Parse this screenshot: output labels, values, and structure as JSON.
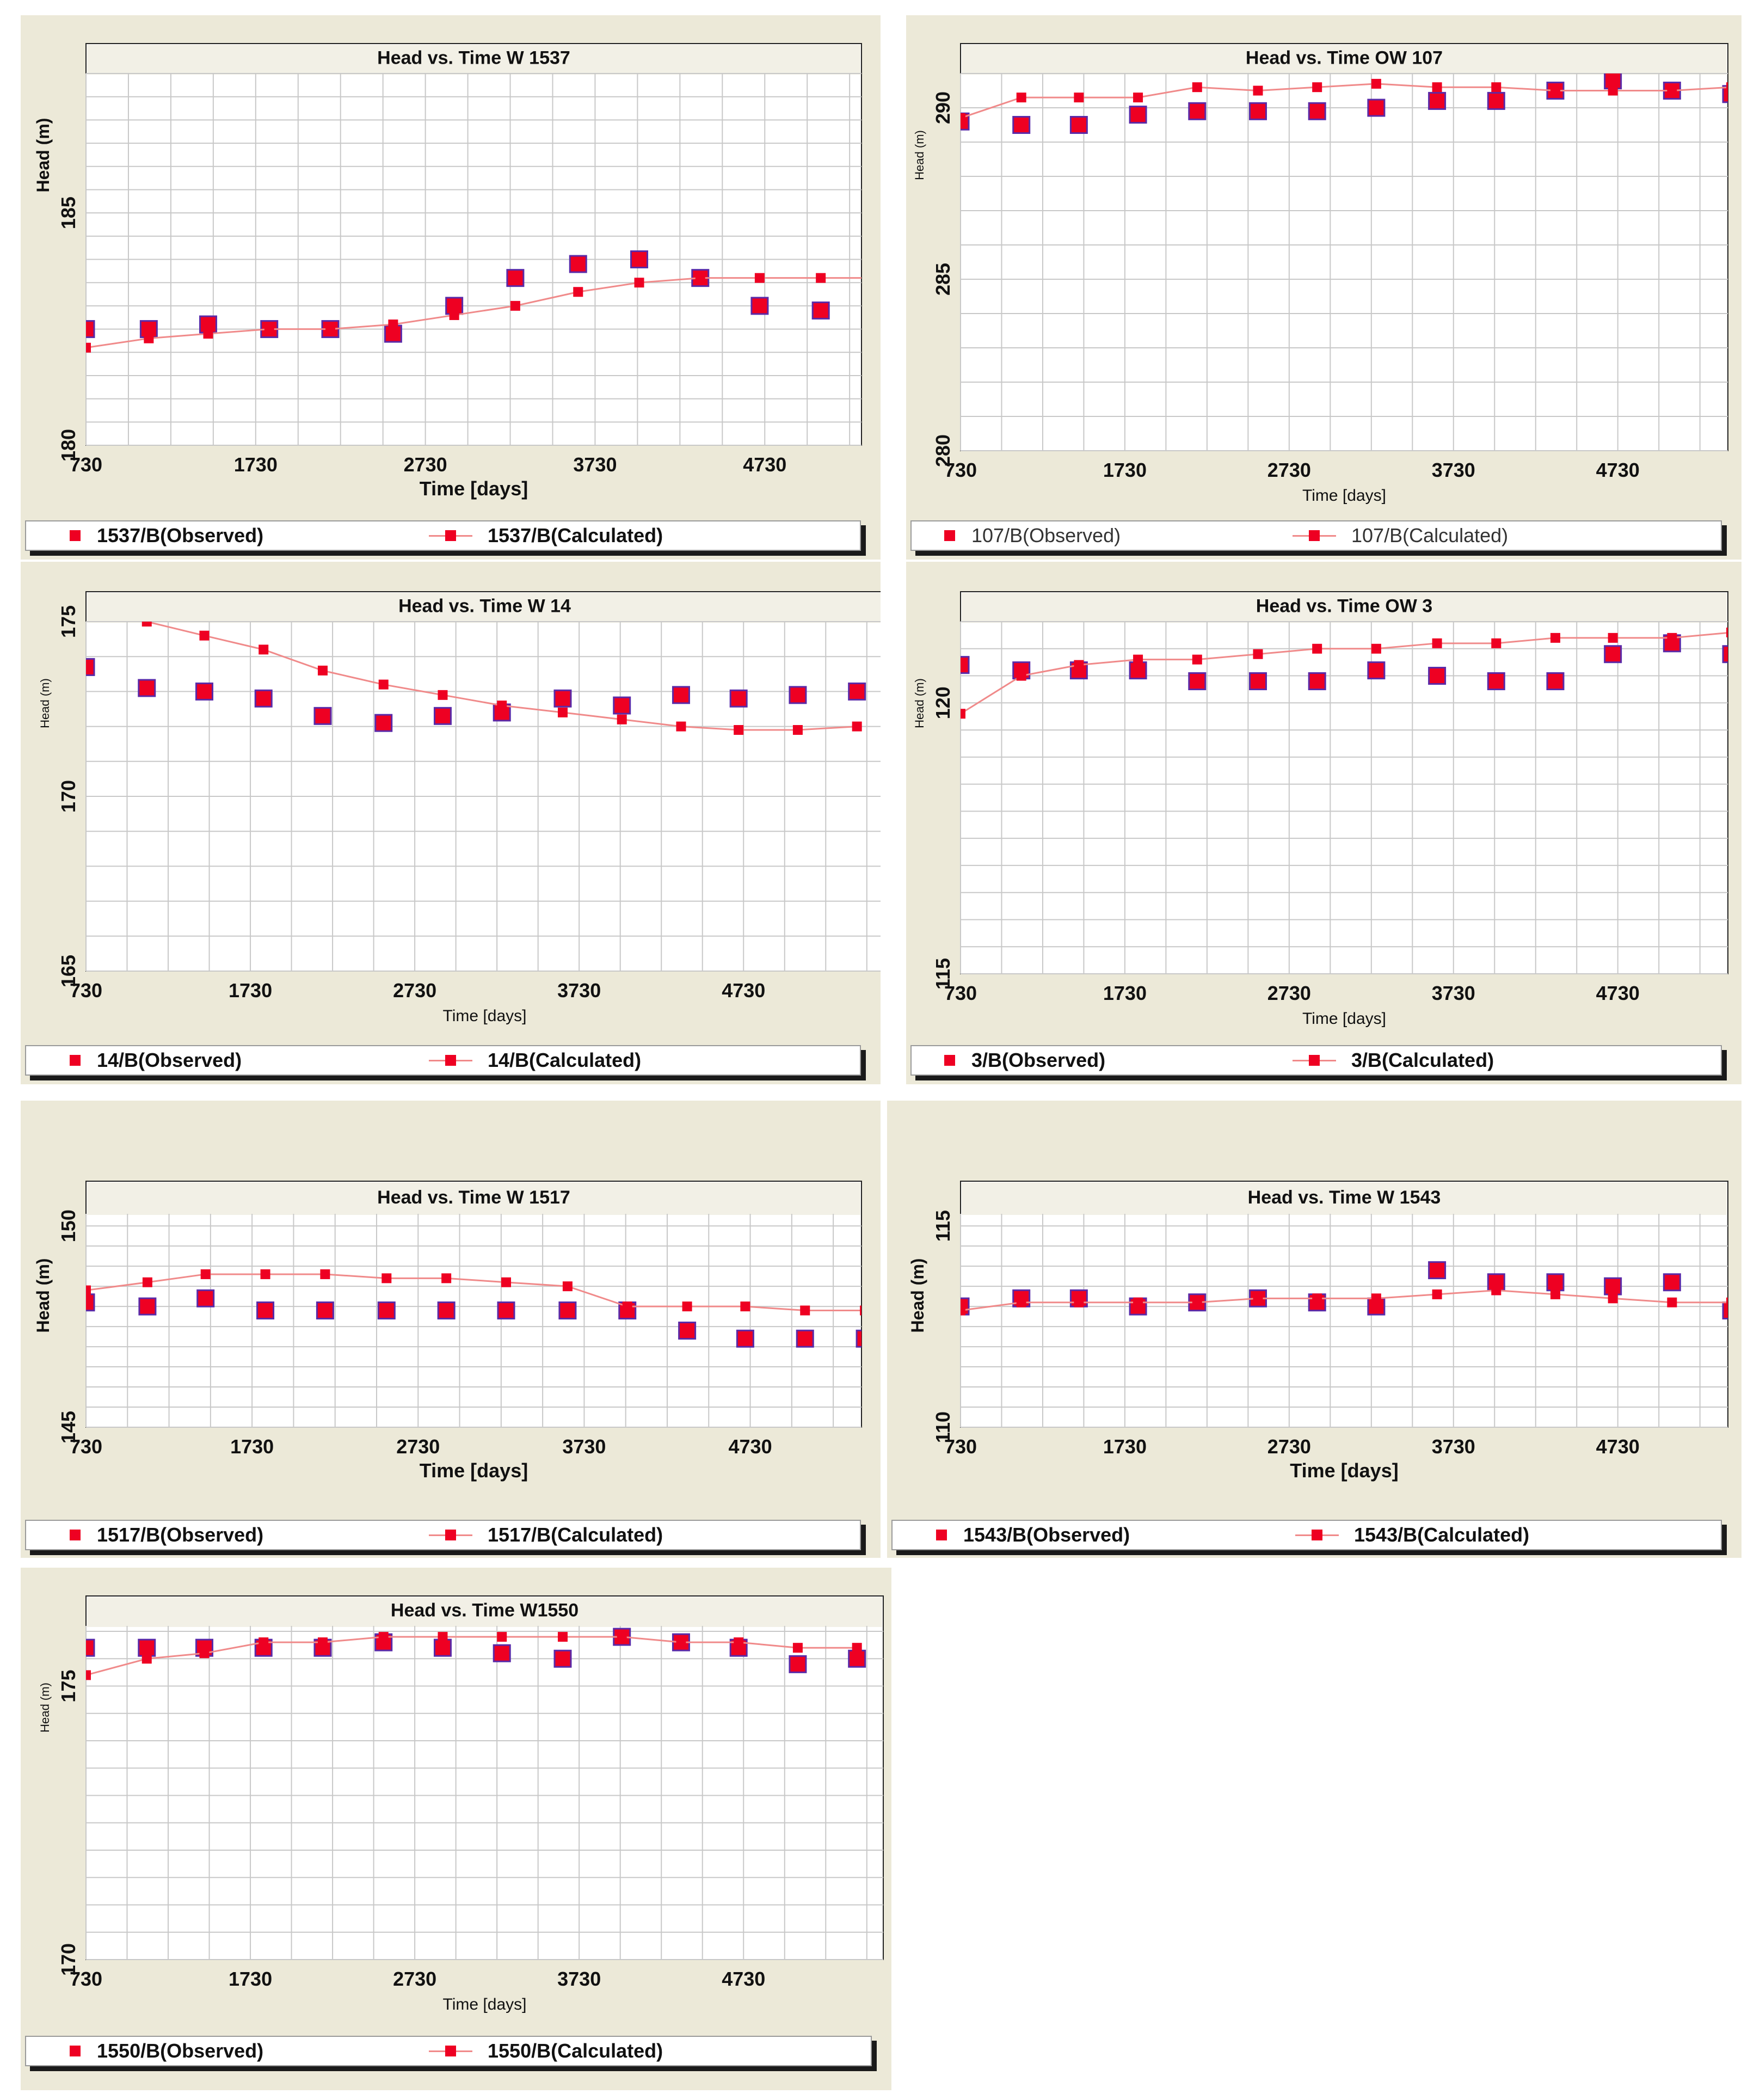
{
  "colors": {
    "marker": "#ee0022",
    "marker_edge": "#5a2aa8",
    "line": "#f08a8a",
    "grid": "#c8c8c8",
    "plot_bg": "#ffffff",
    "panel_bg": "#ece9d8"
  },
  "chart_data": [
    {
      "id": "w1537",
      "type": "scatter",
      "title": "Head vs. Time W 1537",
      "xlabel": "Time  [days]",
      "ylabel": "Head (m)",
      "xlim": [
        730,
        5300
      ],
      "ylim": [
        180,
        188
      ],
      "xticks": [
        "730",
        "1730",
        "2730",
        "3730",
        "4730"
      ],
      "yticks": [
        "180",
        "185"
      ],
      "ytick_values": [
        180,
        185
      ],
      "grid": true,
      "series": [
        {
          "name": "1537/B(Observed)",
          "kind": "markers",
          "x": [
            730,
            1100,
            1450,
            1810,
            2170,
            2540,
            2900,
            3260,
            3630,
            3990,
            4350,
            4700,
            5060,
            5420
          ],
          "y": [
            182.5,
            182.5,
            182.6,
            182.5,
            182.5,
            182.4,
            183.0,
            183.6,
            183.9,
            184.0,
            183.6,
            183.0,
            182.9,
            182.8
          ]
        },
        {
          "name": "1537/B(Calculated)",
          "kind": "line",
          "x": [
            730,
            1100,
            1450,
            1810,
            2170,
            2540,
            2900,
            3260,
            3630,
            3990,
            4350,
            4700,
            5060,
            5420
          ],
          "y": [
            182.1,
            182.3,
            182.4,
            182.5,
            182.5,
            182.6,
            182.8,
            183.0,
            183.3,
            183.5,
            183.6,
            183.6,
            183.6,
            183.6
          ]
        }
      ],
      "legend": [
        "1537/B(Observed)",
        "1537/B(Calculated)"
      ]
    },
    {
      "id": "ow107",
      "type": "scatter",
      "title": "Head vs. Time OW 107",
      "xlabel": "Time  [days]",
      "ylabel": "Head (m)",
      "xlim": [
        730,
        5400
      ],
      "ylim": [
        280,
        291
      ],
      "xticks": [
        "730",
        "1730",
        "2730",
        "3730",
        "4730"
      ],
      "yticks": [
        "280",
        "285",
        "290"
      ],
      "ytick_values": [
        280,
        285,
        290
      ],
      "grid": true,
      "series": [
        {
          "name": "107/B(Observed)",
          "kind": "markers",
          "x": [
            730,
            1100,
            1450,
            1810,
            2170,
            2540,
            2900,
            3260,
            3630,
            3990,
            4350,
            4700,
            5060,
            5420
          ],
          "y": [
            289.6,
            289.5,
            289.5,
            289.8,
            289.9,
            289.9,
            289.9,
            290.0,
            290.2,
            290.2,
            290.5,
            290.8,
            290.5,
            290.4
          ]
        },
        {
          "name": "107/B(Calculated)",
          "kind": "line",
          "x": [
            730,
            1100,
            1450,
            1810,
            2170,
            2540,
            2900,
            3260,
            3630,
            3990,
            4350,
            4700,
            5060,
            5420
          ],
          "y": [
            289.7,
            290.3,
            290.3,
            290.3,
            290.6,
            290.5,
            290.6,
            290.7,
            290.6,
            290.6,
            290.5,
            290.5,
            290.5,
            290.6
          ]
        }
      ],
      "legend": [
        "107/B(Observed)",
        "107/B(Calculated)"
      ]
    },
    {
      "id": "w14",
      "type": "scatter",
      "title": "Head vs. Time W 14",
      "xlabel": "Time  [days]",
      "ylabel": "Head (m)",
      "xlim": [
        730,
        5580
      ],
      "ylim": [
        165,
        175
      ],
      "xticks": [
        "730",
        "1730",
        "2730",
        "3730",
        "4730"
      ],
      "yticks": [
        "165",
        "170",
        "175"
      ],
      "ytick_values": [
        165,
        170,
        175
      ],
      "grid": true,
      "series": [
        {
          "name": "14/B(Observed)",
          "kind": "markers",
          "x": [
            730,
            1100,
            1450,
            1810,
            2170,
            2540,
            2900,
            3260,
            3630,
            3990,
            4350,
            4700,
            5060,
            5420
          ],
          "y": [
            173.7,
            173.1,
            173.0,
            172.8,
            172.3,
            172.1,
            172.3,
            172.4,
            172.8,
            172.6,
            172.9,
            172.8,
            172.9,
            173.0
          ]
        },
        {
          "name": "14/B(Calculated)",
          "kind": "line",
          "x": [
            730,
            1100,
            1450,
            1810,
            2170,
            2540,
            2900,
            3260,
            3630,
            3990,
            4350,
            4700,
            5060,
            5420
          ],
          "y": [
            175.3,
            175.0,
            174.6,
            174.2,
            173.6,
            173.2,
            172.9,
            172.6,
            172.4,
            172.2,
            172.0,
            171.9,
            171.9,
            172.0
          ]
        }
      ],
      "legend": [
        "14/B(Observed)",
        "14/B(Calculated)"
      ]
    },
    {
      "id": "ow3",
      "type": "scatter",
      "title": "Head vs. Time OW 3",
      "xlabel": "Time  [days]",
      "ylabel": "Head (m)",
      "xlim": [
        730,
        5400
      ],
      "ylim": [
        115,
        121.5
      ],
      "xticks": [
        "730",
        "1730",
        "2730",
        "3730",
        "4730"
      ],
      "yticks": [
        "115",
        "120"
      ],
      "ytick_values": [
        115,
        120
      ],
      "grid": true,
      "series": [
        {
          "name": "3/B(Observed)",
          "kind": "markers",
          "x": [
            730,
            1100,
            1450,
            1810,
            2170,
            2540,
            2900,
            3260,
            3630,
            3990,
            4350,
            4700,
            5060,
            5420
          ],
          "y": [
            120.7,
            120.6,
            120.6,
            120.6,
            120.4,
            120.4,
            120.4,
            120.6,
            120.5,
            120.4,
            120.4,
            120.9,
            121.1,
            120.9
          ]
        },
        {
          "name": "3/B(Calculated)",
          "kind": "line",
          "x": [
            730,
            1100,
            1450,
            1810,
            2170,
            2540,
            2900,
            3260,
            3630,
            3990,
            4350,
            4700,
            5060,
            5420
          ],
          "y": [
            119.8,
            120.5,
            120.7,
            120.8,
            120.8,
            120.9,
            121.0,
            121.0,
            121.1,
            121.1,
            121.2,
            121.2,
            121.2,
            121.3
          ]
        }
      ],
      "legend": [
        "3/B(Observed)",
        "3/B(Calculated)"
      ]
    },
    {
      "id": "w1517",
      "type": "scatter",
      "title": "Head vs. Time W 1517",
      "xlabel": "Time  [days]",
      "ylabel": "Head (m)",
      "xlim": [
        730,
        5400
      ],
      "ylim": [
        145,
        150.3
      ],
      "xticks": [
        "730",
        "1730",
        "2730",
        "3730",
        "4730"
      ],
      "yticks": [
        "145",
        "150"
      ],
      "ytick_values": [
        145,
        150
      ],
      "grid": true,
      "series": [
        {
          "name": "1517/B(Observed)",
          "kind": "markers",
          "x": [
            730,
            1100,
            1450,
            1810,
            2170,
            2540,
            2900,
            3260,
            3630,
            3990,
            4350,
            4700,
            5060,
            5420
          ],
          "y": [
            148.1,
            148.0,
            148.2,
            147.9,
            147.9,
            147.9,
            147.9,
            147.9,
            147.9,
            147.9,
            147.4,
            147.2,
            147.2,
            147.2
          ]
        },
        {
          "name": "1517/B(Calculated)",
          "kind": "line",
          "x": [
            730,
            1100,
            1450,
            1810,
            2170,
            2540,
            2900,
            3260,
            3630,
            3990,
            4350,
            4700,
            5060,
            5420
          ],
          "y": [
            148.4,
            148.6,
            148.8,
            148.8,
            148.8,
            148.7,
            148.7,
            148.6,
            148.5,
            148.0,
            148.0,
            148.0,
            147.9,
            147.9
          ]
        }
      ],
      "legend": [
        "1517/B(Observed)",
        "1517/B(Calculated)"
      ]
    },
    {
      "id": "w1543",
      "type": "scatter",
      "title": "Head vs. Time W 1543",
      "xlabel": "Time  [days]",
      "ylabel": "Head (m)",
      "xlim": [
        730,
        5400
      ],
      "ylim": [
        110,
        115.3
      ],
      "xticks": [
        "730",
        "1730",
        "2730",
        "3730",
        "4730"
      ],
      "yticks": [
        "110",
        "115"
      ],
      "ytick_values": [
        110,
        115
      ],
      "grid": true,
      "series": [
        {
          "name": "1543/B(Observed)",
          "kind": "markers",
          "x": [
            730,
            1100,
            1450,
            1810,
            2170,
            2540,
            2900,
            3260,
            3630,
            3990,
            4350,
            4700,
            5060,
            5420
          ],
          "y": [
            113.0,
            113.2,
            113.2,
            113.0,
            113.1,
            113.2,
            113.1,
            113.0,
            113.9,
            113.6,
            113.6,
            113.5,
            113.6,
            112.9
          ]
        },
        {
          "name": "1543/B(Calculated)",
          "kind": "line",
          "x": [
            730,
            1100,
            1450,
            1810,
            2170,
            2540,
            2900,
            3260,
            3630,
            3990,
            4350,
            4700,
            5060,
            5420
          ],
          "y": [
            112.9,
            113.1,
            113.1,
            113.1,
            113.1,
            113.2,
            113.2,
            113.2,
            113.3,
            113.4,
            113.3,
            113.2,
            113.1,
            113.1
          ]
        }
      ],
      "legend": [
        "1543/B(Observed)",
        "1543/B(Calculated)"
      ]
    },
    {
      "id": "w1550",
      "type": "scatter",
      "title": "Head vs. Time W1550",
      "xlabel": "Time  [days]",
      "ylabel": "Head (m)",
      "xlim": [
        730,
        5580
      ],
      "ylim": [
        170,
        176.1
      ],
      "xticks": [
        "730",
        "1730",
        "2730",
        "3730",
        "4730"
      ],
      "yticks": [
        "170",
        "175"
      ],
      "ytick_values": [
        170,
        175
      ],
      "grid": true,
      "series": [
        {
          "name": "1550/B(Observed)",
          "kind": "markers",
          "x": [
            730,
            1100,
            1450,
            1810,
            2170,
            2540,
            2900,
            3260,
            3630,
            3990,
            4350,
            4700,
            5060,
            5420
          ],
          "y": [
            175.7,
            175.7,
            175.7,
            175.7,
            175.7,
            175.8,
            175.7,
            175.6,
            175.5,
            175.9,
            175.8,
            175.7,
            175.4,
            175.5
          ]
        },
        {
          "name": "1550/B(Calculated)",
          "kind": "line",
          "x": [
            730,
            1100,
            1450,
            1810,
            2170,
            2540,
            2900,
            3260,
            3630,
            3990,
            4350,
            4700,
            5060,
            5420
          ],
          "y": [
            175.2,
            175.5,
            175.6,
            175.8,
            175.8,
            175.9,
            175.9,
            175.9,
            175.9,
            175.9,
            175.8,
            175.8,
            175.7,
            175.7
          ]
        }
      ],
      "legend": [
        "1550/B(Observed)",
        "1550/B(Calculated)"
      ]
    }
  ]
}
